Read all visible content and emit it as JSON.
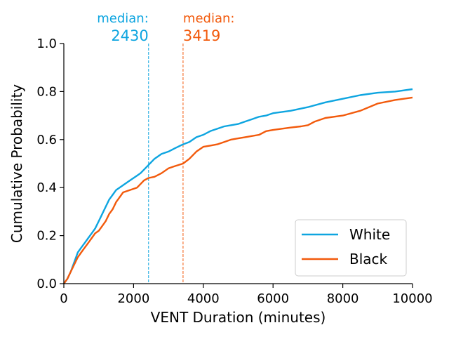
{
  "chart_data": {
    "type": "line",
    "xlabel": "VENT Duration (minutes)",
    "ylabel": "Cumulative Probability",
    "xlim": [
      0,
      10000
    ],
    "ylim": [
      0,
      1.0
    ],
    "x_ticks": [
      "0",
      "2000",
      "4000",
      "6000",
      "8000",
      "10000"
    ],
    "y_ticks": [
      "0.0",
      "0.2",
      "0.4",
      "0.6",
      "0.8",
      "1.0"
    ],
    "grid": false,
    "legend_position": "bottom-right",
    "series": [
      {
        "name": "White",
        "color": "#0ea5e0",
        "points": [
          [
            0,
            0.0
          ],
          [
            100,
            0.02
          ],
          [
            200,
            0.05
          ],
          [
            300,
            0.09
          ],
          [
            400,
            0.13
          ],
          [
            500,
            0.15
          ],
          [
            600,
            0.17
          ],
          [
            700,
            0.19
          ],
          [
            800,
            0.21
          ],
          [
            900,
            0.23
          ],
          [
            1000,
            0.26
          ],
          [
            1100,
            0.29
          ],
          [
            1200,
            0.32
          ],
          [
            1300,
            0.35
          ],
          [
            1400,
            0.37
          ],
          [
            1500,
            0.39
          ],
          [
            1700,
            0.41
          ],
          [
            1900,
            0.43
          ],
          [
            2100,
            0.45
          ],
          [
            2200,
            0.46
          ],
          [
            2400,
            0.49
          ],
          [
            2600,
            0.52
          ],
          [
            2800,
            0.54
          ],
          [
            3000,
            0.55
          ],
          [
            3200,
            0.565
          ],
          [
            3419,
            0.58
          ],
          [
            3600,
            0.59
          ],
          [
            3800,
            0.61
          ],
          [
            4000,
            0.62
          ],
          [
            4200,
            0.635
          ],
          [
            4400,
            0.645
          ],
          [
            4600,
            0.655
          ],
          [
            4800,
            0.66
          ],
          [
            5000,
            0.665
          ],
          [
            5200,
            0.675
          ],
          [
            5400,
            0.685
          ],
          [
            5600,
            0.695
          ],
          [
            5800,
            0.7
          ],
          [
            6000,
            0.71
          ],
          [
            6500,
            0.72
          ],
          [
            7000,
            0.735
          ],
          [
            7500,
            0.755
          ],
          [
            8000,
            0.77
          ],
          [
            8500,
            0.785
          ],
          [
            9000,
            0.795
          ],
          [
            9500,
            0.8
          ],
          [
            10000,
            0.81
          ]
        ]
      },
      {
        "name": "Black",
        "color": "#f25a0c",
        "points": [
          [
            0,
            0.0
          ],
          [
            100,
            0.02
          ],
          [
            200,
            0.05
          ],
          [
            300,
            0.08
          ],
          [
            400,
            0.11
          ],
          [
            500,
            0.13
          ],
          [
            600,
            0.15
          ],
          [
            700,
            0.17
          ],
          [
            800,
            0.19
          ],
          [
            900,
            0.21
          ],
          [
            1000,
            0.22
          ],
          [
            1100,
            0.24
          ],
          [
            1200,
            0.26
          ],
          [
            1300,
            0.29
          ],
          [
            1400,
            0.31
          ],
          [
            1500,
            0.34
          ],
          [
            1600,
            0.36
          ],
          [
            1700,
            0.38
          ],
          [
            1900,
            0.39
          ],
          [
            2100,
            0.4
          ],
          [
            2300,
            0.43
          ],
          [
            2430,
            0.44
          ],
          [
            2600,
            0.445
          ],
          [
            2800,
            0.46
          ],
          [
            3000,
            0.48
          ],
          [
            3200,
            0.49
          ],
          [
            3419,
            0.5
          ],
          [
            3600,
            0.52
          ],
          [
            3800,
            0.55
          ],
          [
            4000,
            0.57
          ],
          [
            4200,
            0.575
          ],
          [
            4400,
            0.58
          ],
          [
            4600,
            0.59
          ],
          [
            4800,
            0.6
          ],
          [
            5000,
            0.605
          ],
          [
            5200,
            0.61
          ],
          [
            5400,
            0.615
          ],
          [
            5600,
            0.62
          ],
          [
            5800,
            0.635
          ],
          [
            6000,
            0.64
          ],
          [
            6500,
            0.65
          ],
          [
            6800,
            0.655
          ],
          [
            7000,
            0.66
          ],
          [
            7200,
            0.675
          ],
          [
            7500,
            0.69
          ],
          [
            8000,
            0.7
          ],
          [
            8500,
            0.72
          ],
          [
            9000,
            0.75
          ],
          [
            9500,
            0.765
          ],
          [
            10000,
            0.775
          ]
        ]
      }
    ],
    "annotations": [
      {
        "label": "median:",
        "value": "2430",
        "x": 2430,
        "color": "#0ea5e0",
        "align": "right"
      },
      {
        "label": "median:",
        "value": "3419",
        "x": 3419,
        "color": "#f25a0c",
        "align": "left"
      }
    ]
  }
}
